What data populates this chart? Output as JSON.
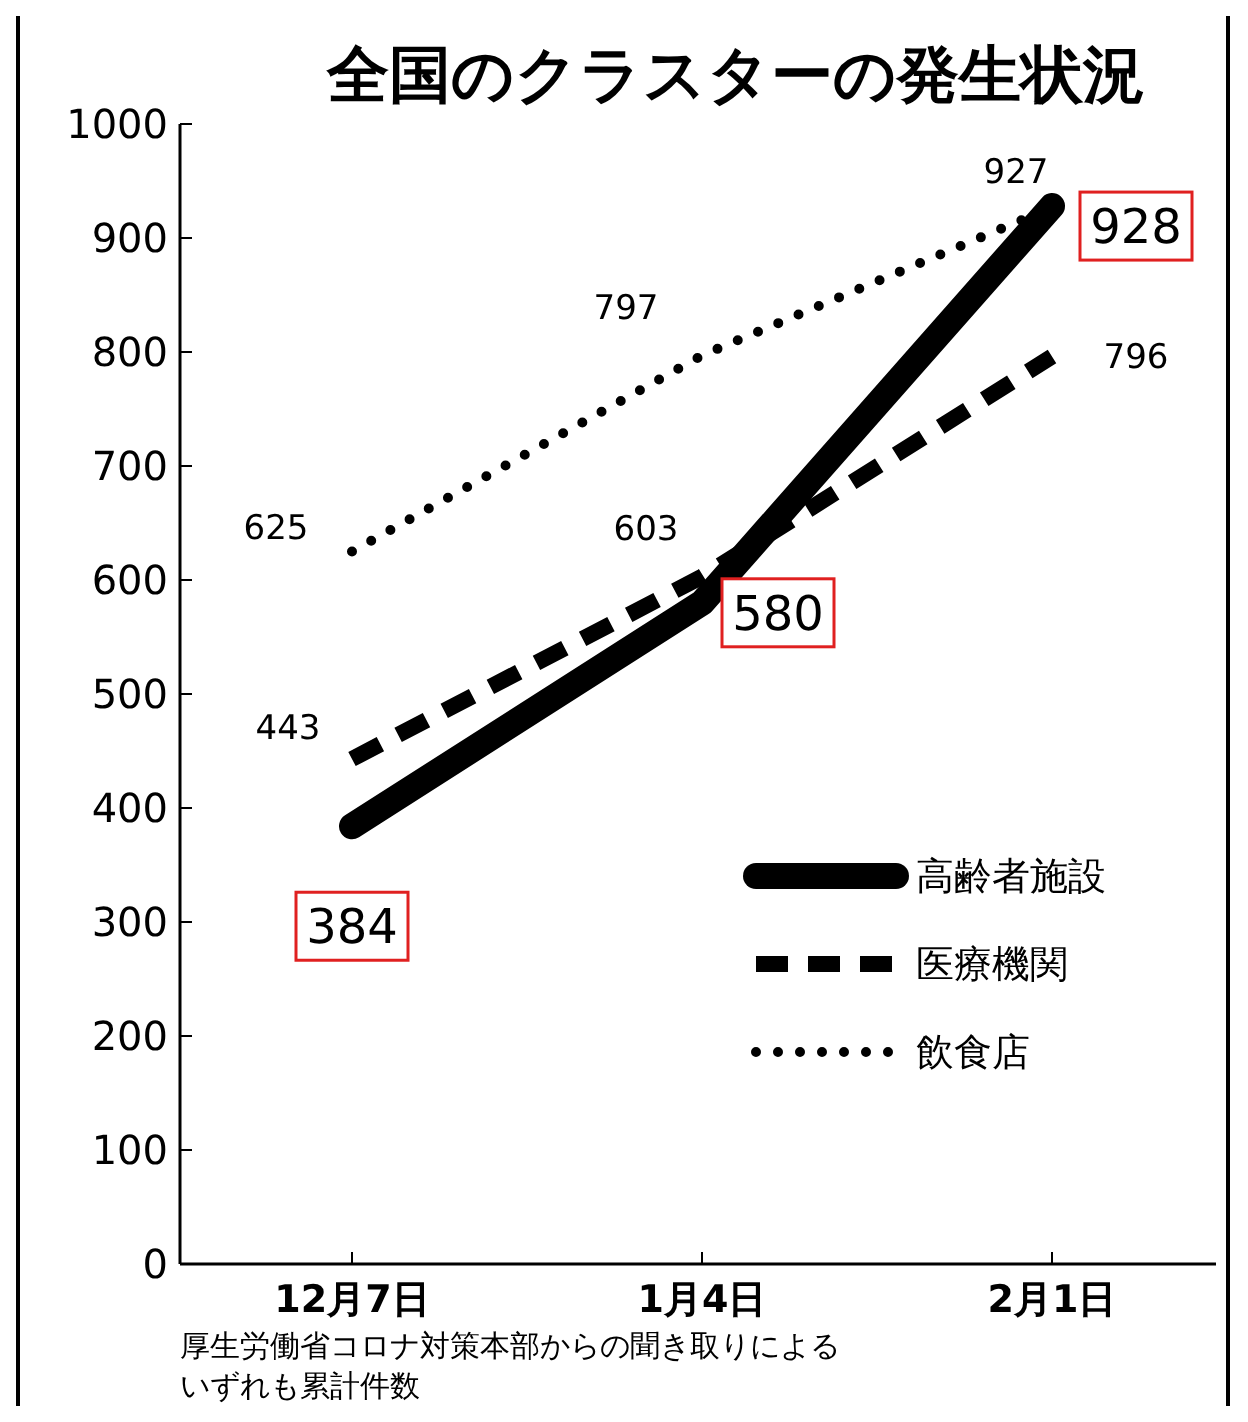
{
  "chart_data": {
    "type": "line",
    "title": "全国のクラスターの発生状況",
    "categories": [
      "12月7日",
      "1月4日",
      "2月1日"
    ],
    "series": [
      {
        "name": "高齢者施設",
        "color": "#000000",
        "line_style": "solid",
        "values": [
          384,
          580,
          928
        ]
      },
      {
        "name": "医療機関",
        "color": "#000000",
        "line_style": "dashed",
        "values": [
          443,
          603,
          796
        ]
      },
      {
        "name": "飲食店",
        "color": "#000000",
        "line_style": "dotted",
        "values": [
          625,
          797,
          927
        ]
      }
    ],
    "ylim": [
      0,
      1000
    ],
    "yticks": [
      0,
      100,
      200,
      300,
      400,
      500,
      600,
      700,
      800,
      900,
      1000
    ],
    "grid": false,
    "legend": "right",
    "marker": "none",
    "data_labels": true,
    "annotations": [
      "厚生労働省コロナ対策本部からの聞き取りによる",
      "いずれも累計件数"
    ]
  }
}
